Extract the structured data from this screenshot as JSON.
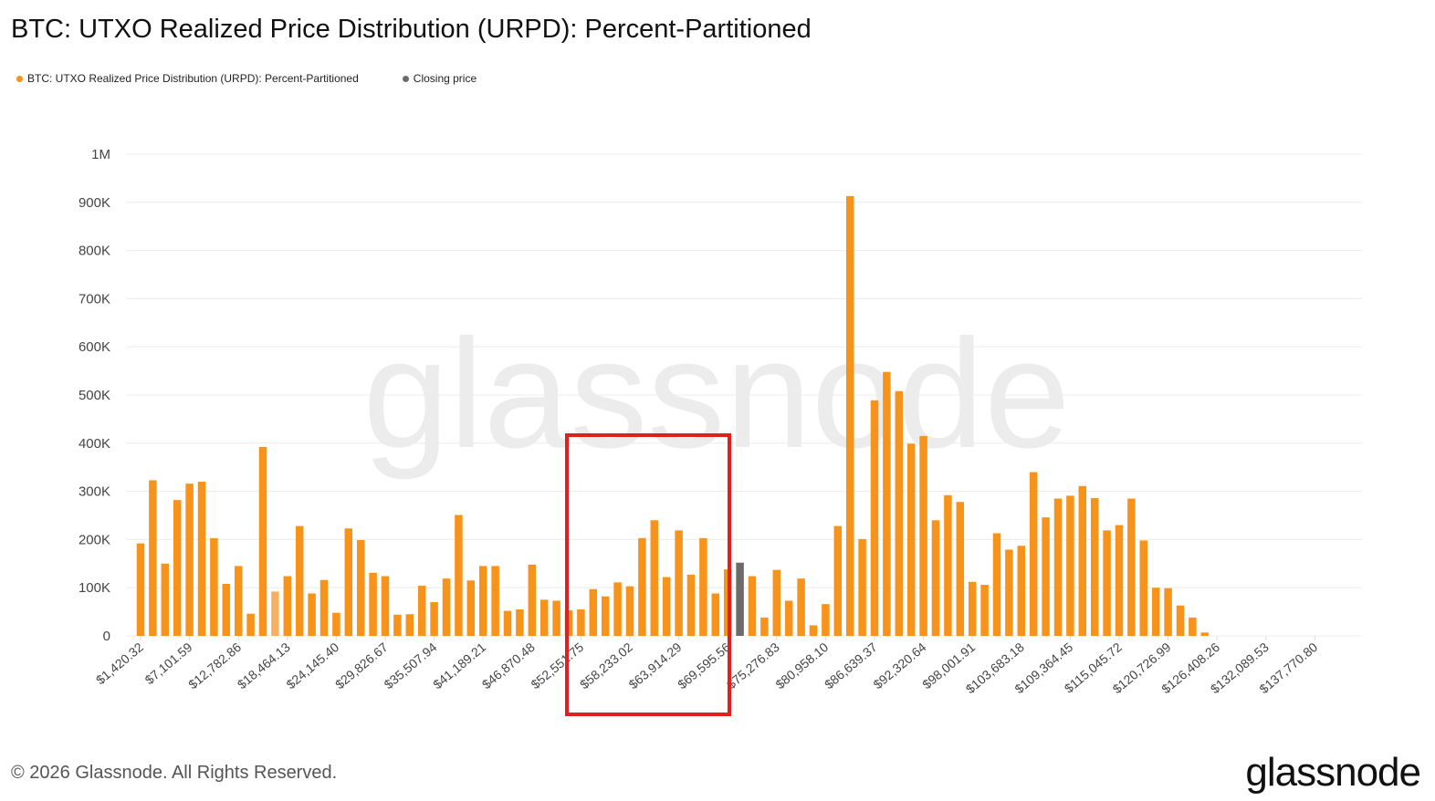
{
  "title": "BTC: UTXO Realized Price Distribution (URPD): Percent-Partitioned",
  "legend": [
    {
      "label": "BTC: UTXO Realized Price Distribution (URPD): Percent-Partitioned",
      "color": "#f7931a"
    },
    {
      "label": "Closing price",
      "color": "#6b6b6b"
    }
  ],
  "footer": "© 2026 Glassnode. All Rights Reserved.",
  "logo": "glassnode",
  "watermark": "glassnode",
  "chart_data": {
    "type": "bar",
    "title": "BTC: UTXO Realized Price Distribution (URPD): Percent-Partitioned",
    "ylim": [
      0,
      1000000
    ],
    "yticks": [
      "0",
      "100K",
      "200K",
      "300K",
      "400K",
      "500K",
      "600K",
      "700K",
      "800K",
      "900K",
      "1M"
    ],
    "grid": true,
    "legend_position": "top-left",
    "xtick_labels": [
      "$1,420.32",
      "$7,101.59",
      "$12,782.86",
      "$18,464.13",
      "$24,145.40",
      "$29,826.67",
      "$35,507.94",
      "$41,189.21",
      "$46,870.48",
      "$52,551.75",
      "$58,233.02",
      "$63,914.29",
      "$69,595.56",
      "$75,276.83",
      "$80,958.10",
      "$86,639.37",
      "$92,320.64",
      "$98,001.91",
      "$103,683.18",
      "$109,364.45",
      "$115,045.72",
      "$120,726.99",
      "$126,408.26",
      "$132,089.53",
      "$137,770.80"
    ],
    "bucket_size": 1420.32,
    "closing_price_bucket_index": 49,
    "highlighted_light_bucket_index": 11,
    "values": [
      192000,
      323000,
      150000,
      282000,
      316000,
      320000,
      203000,
      108000,
      145000,
      46000,
      392000,
      92000,
      124000,
      228000,
      88000,
      116000,
      48000,
      223000,
      199000,
      131000,
      124000,
      44000,
      45000,
      104000,
      70000,
      119000,
      251000,
      115000,
      145000,
      145000,
      52000,
      55000,
      148000,
      75000,
      73000,
      53000,
      55000,
      97000,
      82000,
      111000,
      103000,
      203000,
      240000,
      122000,
      219000,
      127000,
      203000,
      88000,
      138000,
      152000,
      124000,
      38000,
      137000,
      73000,
      119000,
      22000,
      66000,
      228000,
      913000,
      201000,
      489000,
      548000,
      508000,
      399000,
      415000,
      240000,
      292000,
      278000,
      112000,
      106000,
      213000,
      179000,
      187000,
      340000,
      246000,
      285000,
      291000,
      311000,
      286000,
      219000,
      230000,
      285000,
      198000,
      100000,
      99000,
      63000,
      38000,
      7000,
      0,
      0,
      0,
      0,
      0,
      0,
      0,
      0,
      0,
      0
    ],
    "annotation": {
      "type": "rectangle",
      "color": "#e02020",
      "covers_labels": [
        "$58,233.02",
        "$63,914.29",
        "$69,595.56"
      ]
    }
  }
}
